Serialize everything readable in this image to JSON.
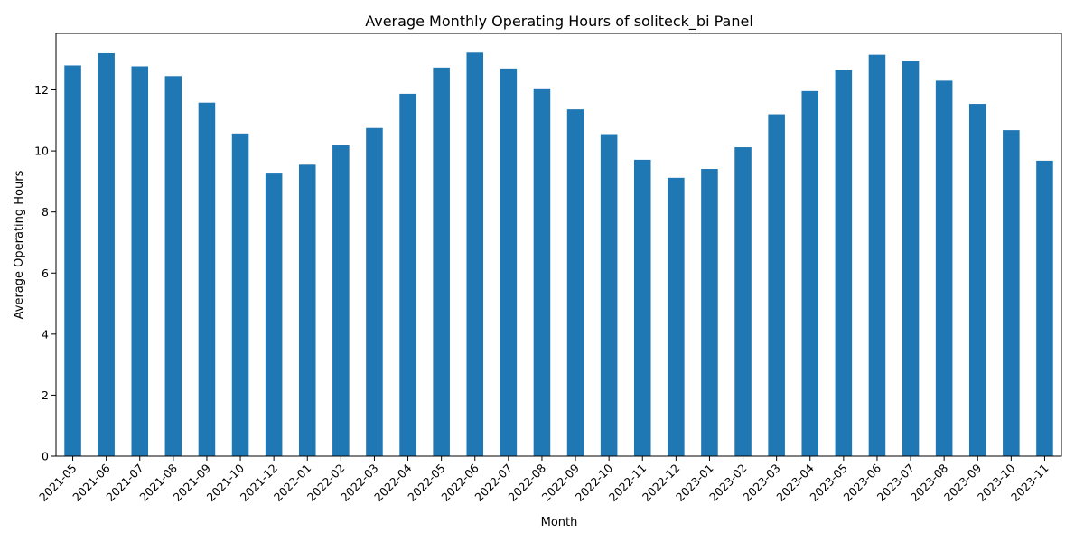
{
  "chart_data": {
    "type": "bar",
    "title": "Average Monthly Operating Hours of soliteck_bi Panel",
    "xlabel": "Month",
    "ylabel": "Average Operating Hours",
    "categories": [
      "2021-05",
      "2021-06",
      "2021-07",
      "2021-08",
      "2021-09",
      "2021-10",
      "2021-12",
      "2022-01",
      "2022-02",
      "2022-03",
      "2022-04",
      "2022-05",
      "2022-06",
      "2022-07",
      "2022-08",
      "2022-09",
      "2022-10",
      "2022-11",
      "2022-12",
      "2023-01",
      "2023-02",
      "2023-03",
      "2023-04",
      "2023-05",
      "2023-06",
      "2023-07",
      "2023-08",
      "2023-09",
      "2023-10",
      "2023-11"
    ],
    "values": [
      12.8,
      13.2,
      12.77,
      12.45,
      11.58,
      10.57,
      9.26,
      9.55,
      10.18,
      10.75,
      11.87,
      12.73,
      13.22,
      12.7,
      12.05,
      11.36,
      10.55,
      9.71,
      9.12,
      9.41,
      10.12,
      11.2,
      11.96,
      12.65,
      13.15,
      12.95,
      12.3,
      11.54,
      10.68,
      9.68
    ],
    "ylim": [
      0,
      13.85
    ],
    "yticks": [
      0,
      2,
      4,
      6,
      8,
      10,
      12
    ],
    "grid": false,
    "legend": "none",
    "bar_color": "#1f77b4"
  }
}
